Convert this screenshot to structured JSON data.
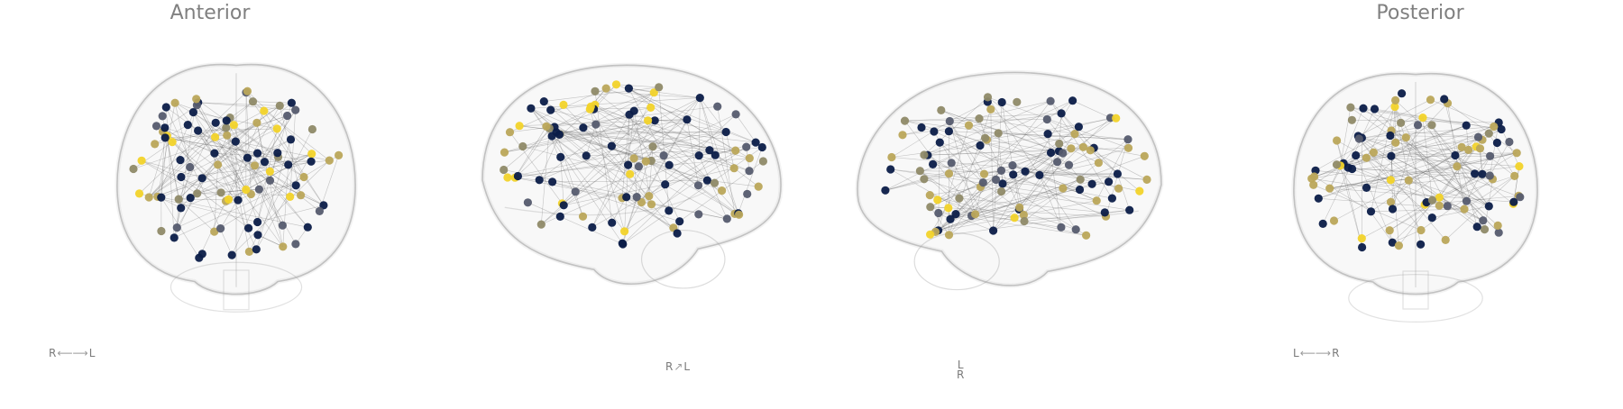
{
  "figure": {
    "views": [
      {
        "id": "anterior",
        "title": "Anterior",
        "orientation": {
          "left": "R",
          "right": "L",
          "arrow": "⟵⟶"
        }
      },
      {
        "id": "lateral-right",
        "title": "",
        "orientation": {
          "left": "R",
          "right": "L",
          "arrow": "↗"
        }
      },
      {
        "id": "lateral-left",
        "title": "",
        "orientation": {
          "top": "L",
          "bottom": "R"
        }
      },
      {
        "id": "posterior",
        "title": "Posterior",
        "orientation": {
          "left": "L",
          "right": "R",
          "arrow": "⟵⟶"
        }
      }
    ],
    "node_colors": {
      "navy": "#0b1c48",
      "slate": "#555b6e",
      "olive": "#8f8a68",
      "khaki": "#bba75a",
      "yellow": "#f2d32a"
    },
    "edge_color": "#606060",
    "brain_outline_color": "#9a9a9a"
  }
}
